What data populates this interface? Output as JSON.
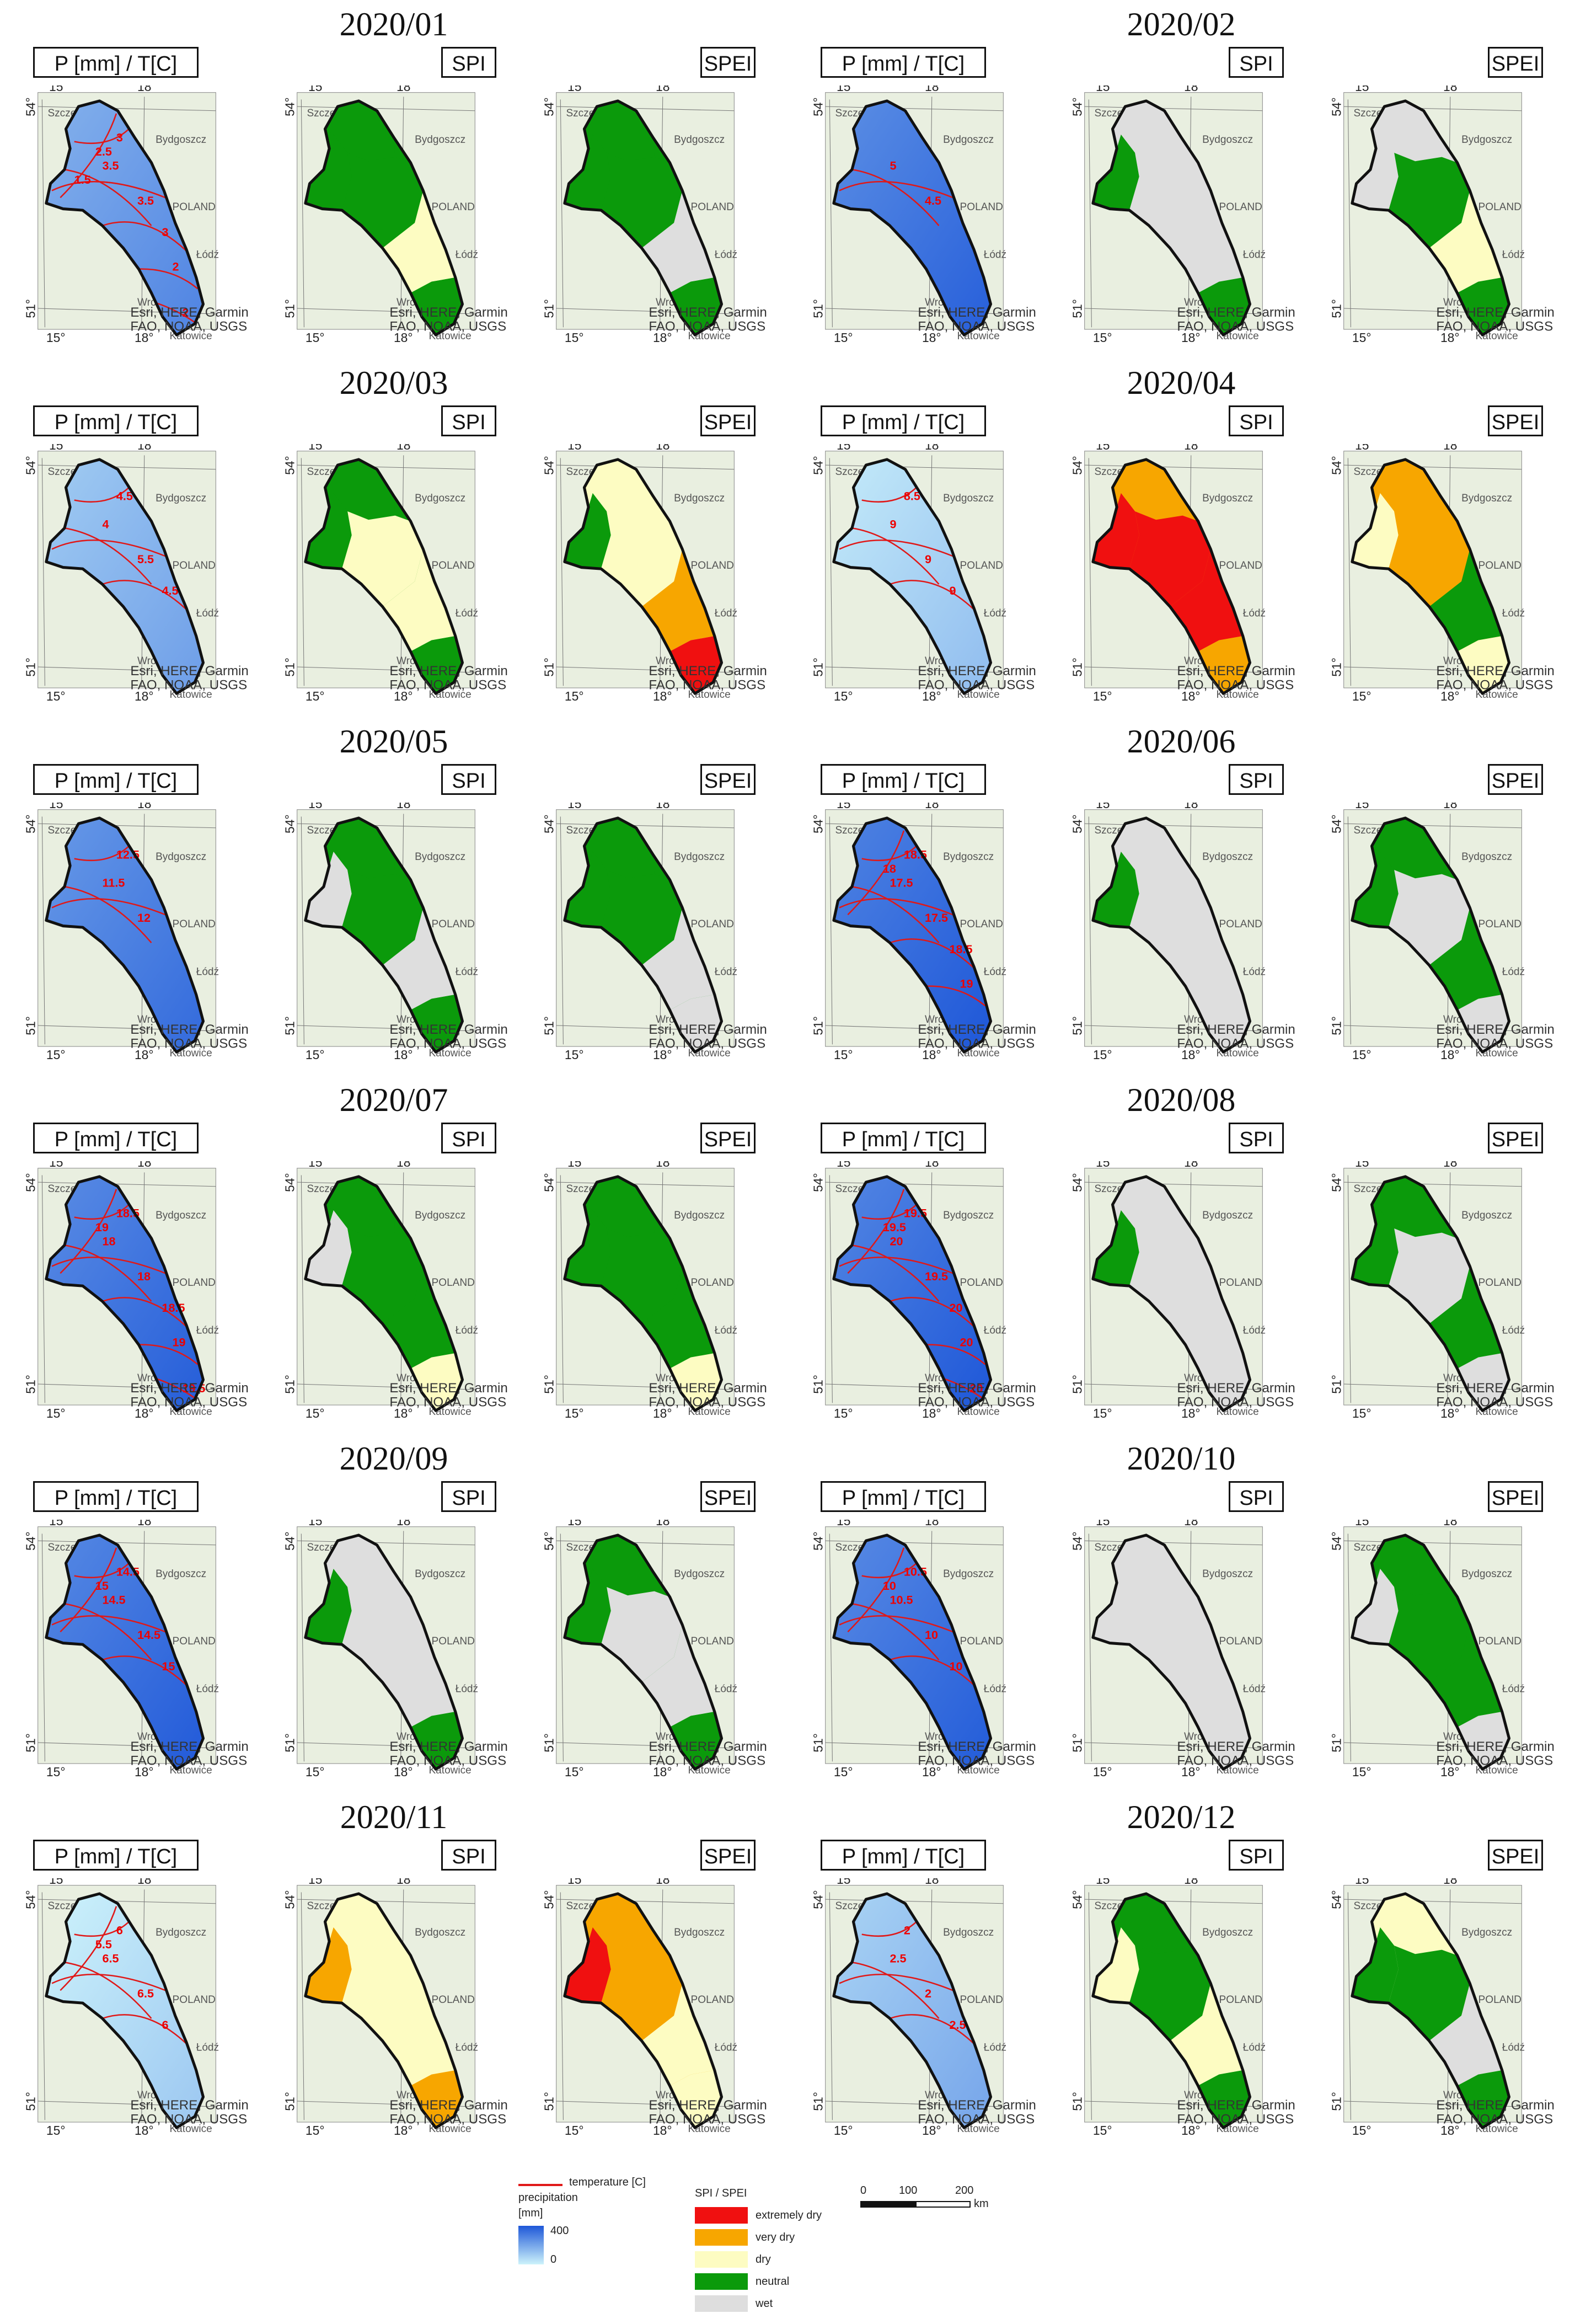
{
  "panel_labels": [
    "P [mm] / T[C]",
    "SPI",
    "SPEI"
  ],
  "map_annotations": {
    "lon_ticks": [
      "15°",
      "18°"
    ],
    "lat_ticks": [
      "54°",
      "51°"
    ],
    "places": [
      "Szczecin",
      "Bydgoszcz",
      "POLAND",
      "Wrocław",
      "Łódź",
      "Katowice"
    ],
    "credit_lines": [
      "Esri, HERE, Garmin,",
      "FAO, NOAA, USGS"
    ]
  },
  "months": [
    {
      "title": "2020/01",
      "p_fill": 0.62,
      "iso": [
        "3.5",
        "3.5",
        "3",
        "3",
        "2.5",
        "2",
        "2",
        "1.5"
      ],
      "spi": [
        "neutral",
        "neutral",
        "neutral",
        "dry",
        "neutral"
      ],
      "spei": [
        "neutral",
        "neutral",
        "neutral",
        "wet",
        "neutral"
      ]
    },
    {
      "title": "2020/02",
      "p_fill": 0.85,
      "iso": [
        "5",
        "4.5"
      ],
      "spi": [
        "wet",
        "neutral",
        "wet",
        "wet",
        "neutral"
      ],
      "spei": [
        "wet",
        "wet",
        "neutral",
        "dry",
        "neutral"
      ]
    },
    {
      "title": "2020/03",
      "p_fill": 0.45,
      "iso": [
        "4",
        "5.5",
        "4.5",
        "4.5"
      ],
      "spi": [
        "neutral",
        "neutral",
        "dry",
        "dry",
        "neutral"
      ],
      "spei": [
        "dry",
        "neutral",
        "dry",
        "very dry",
        "extremely dry"
      ]
    },
    {
      "title": "2020/04",
      "p_fill": 0.25,
      "iso": [
        "9",
        "9",
        "8.5",
        "9"
      ],
      "spi": [
        "very dry",
        "extremely dry",
        "extremely dry",
        "extremely dry",
        "very dry"
      ],
      "spei": [
        "very dry",
        "dry",
        "very dry",
        "neutral",
        "dry"
      ]
    },
    {
      "title": "2020/05",
      "p_fill": 0.78,
      "iso": [
        "11.5",
        "12",
        "12.5"
      ],
      "spi": [
        "neutral",
        "wet",
        "neutral",
        "wet",
        "neutral"
      ],
      "spei": [
        "neutral",
        "neutral",
        "neutral",
        "wet",
        "wet"
      ]
    },
    {
      "title": "2020/06",
      "p_fill": 0.92,
      "iso": [
        "17.5",
        "17.5",
        "18.5",
        "18.5",
        "18",
        "19"
      ],
      "spi": [
        "wet",
        "neutral",
        "wet",
        "wet",
        "wet"
      ],
      "spei": [
        "neutral",
        "neutral",
        "wet",
        "neutral",
        "wet"
      ]
    },
    {
      "title": "2020/07",
      "p_fill": 0.86,
      "iso": [
        "18",
        "18",
        "18.5",
        "18.5",
        "19",
        "19",
        "19.5"
      ],
      "spi": [
        "neutral",
        "wet",
        "neutral",
        "neutral",
        "dry"
      ],
      "spei": [
        "neutral",
        "neutral",
        "neutral",
        "neutral",
        "dry"
      ]
    },
    {
      "title": "2020/08",
      "p_fill": 0.9,
      "iso": [
        "20",
        "19.5",
        "19.5",
        "20",
        "19.5",
        "20",
        "20"
      ],
      "spi": [
        "wet",
        "neutral",
        "wet",
        "wet",
        "wet"
      ],
      "spei": [
        "neutral",
        "neutral",
        "wet",
        "neutral",
        "wet"
      ]
    },
    {
      "title": "2020/09",
      "p_fill": 0.88,
      "iso": [
        "14.5",
        "14.5",
        "14.5",
        "15",
        "15"
      ],
      "spi": [
        "wet",
        "neutral",
        "wet",
        "wet",
        "neutral"
      ],
      "spei": [
        "neutral",
        "neutral",
        "wet",
        "wet",
        "neutral"
      ]
    },
    {
      "title": "2020/10",
      "p_fill": 0.87,
      "iso": [
        "10.5",
        "10",
        "10.5",
        "10",
        "10"
      ],
      "spi": [
        "wet",
        "wet",
        "wet",
        "wet",
        "wet"
      ],
      "spei": [
        "neutral",
        "wet",
        "neutral",
        "neutral",
        "wet"
      ]
    },
    {
      "title": "2020/11",
      "p_fill": 0.18,
      "iso": [
        "6.5",
        "6.5",
        "6",
        "6",
        "5.5"
      ],
      "spi": [
        "dry",
        "very dry",
        "dry",
        "dry",
        "very dry"
      ],
      "spei": [
        "very dry",
        "extremely dry",
        "very dry",
        "dry",
        "dry"
      ]
    },
    {
      "title": "2020/12",
      "p_fill": 0.4,
      "iso": [
        "2.5",
        "2",
        "2",
        "2.5"
      ],
      "spi": [
        "neutral",
        "dry",
        "neutral",
        "dry",
        "neutral"
      ],
      "spei": [
        "dry",
        "neutral",
        "neutral",
        "wet",
        "neutral"
      ]
    }
  ],
  "legend": {
    "temperature_label": "temperature [C]",
    "precip_label": "precipitation",
    "precip_unit": "[mm]",
    "precip_max": "400",
    "precip_min": "0",
    "spi_spei_title": "SPI / SPEI",
    "classes": [
      {
        "label": "extremely dry",
        "color": "#f01010"
      },
      {
        "label": "very dry",
        "color": "#f7a600"
      },
      {
        "label": "dry",
        "color": "#fdfcc2"
      },
      {
        "label": "neutral",
        "color": "#0b9a0b"
      },
      {
        "label": "wet",
        "color": "#dedede"
      }
    ],
    "scale_ticks": [
      "0",
      "100",
      "200"
    ],
    "scale_unit": "km"
  },
  "colors": {
    "temperature_line": "#e01818",
    "precip_low": "#cdf3fb",
    "precip_high": "#1e57d8",
    "basemap": "#e9efe0",
    "border": "#111111"
  }
}
